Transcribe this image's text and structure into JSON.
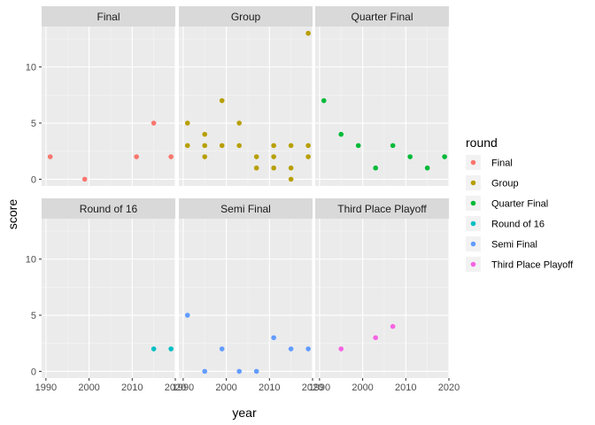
{
  "chart_data": {
    "type": "scatter",
    "facet_layout": "2x3 grid",
    "xlabel": "year",
    "ylabel": "score",
    "xlim": [
      1989,
      2020
    ],
    "ylim": [
      -0.6,
      13.6
    ],
    "x_ticks": [
      1990,
      2000,
      2010,
      2020
    ],
    "x_tick_labels": [
      "1990",
      "2000",
      "2010",
      "2020"
    ],
    "y_ticks": [
      0,
      5,
      10
    ],
    "y_tick_labels": [
      "0",
      "5",
      "10"
    ],
    "grid": true,
    "legend": {
      "title": "round",
      "placement": "right",
      "entries": [
        {
          "label": "Final",
          "color": "#F8766D"
        },
        {
          "label": "Group",
          "color": "#B79F00"
        },
        {
          "label": "Quarter Final",
          "color": "#00BA38"
        },
        {
          "label": "Round of 16",
          "color": "#00BFC4"
        },
        {
          "label": "Semi Final",
          "color": "#619CFF"
        },
        {
          "label": "Third Place Playoff",
          "color": "#F564E3"
        }
      ]
    },
    "panels": [
      {
        "name": "Final",
        "color": "#F8766D",
        "points": [
          [
            1991,
            2
          ],
          [
            1999,
            0
          ],
          [
            2011,
            2
          ],
          [
            2015,
            5
          ],
          [
            2019,
            2
          ]
        ]
      },
      {
        "name": "Group",
        "color": "#B79F00",
        "points": [
          [
            1991,
            5
          ],
          [
            1991,
            3
          ],
          [
            1995,
            4
          ],
          [
            1995,
            3
          ],
          [
            1995,
            2
          ],
          [
            1999,
            7
          ],
          [
            1999,
            3
          ],
          [
            2003,
            5
          ],
          [
            2003,
            3
          ],
          [
            2007,
            2
          ],
          [
            2007,
            1
          ],
          [
            2011,
            3
          ],
          [
            2011,
            2
          ],
          [
            2011,
            1
          ],
          [
            2015,
            3
          ],
          [
            2015,
            1
          ],
          [
            2015,
            0
          ],
          [
            2019,
            13
          ],
          [
            2019,
            3
          ],
          [
            2019,
            2
          ]
        ]
      },
      {
        "name": "Quarter Final",
        "color": "#00BA38",
        "points": [
          [
            1991,
            7
          ],
          [
            1995,
            4
          ],
          [
            1999,
            3
          ],
          [
            2003,
            1
          ],
          [
            2007,
            3
          ],
          [
            2011,
            2
          ],
          [
            2015,
            1
          ],
          [
            2019,
            2
          ]
        ]
      },
      {
        "name": "Round of 16",
        "color": "#00BFC4",
        "points": [
          [
            2015,
            2
          ],
          [
            2019,
            2
          ]
        ]
      },
      {
        "name": "Semi Final",
        "color": "#619CFF",
        "points": [
          [
            1991,
            5
          ],
          [
            1995,
            0
          ],
          [
            1999,
            2
          ],
          [
            2003,
            0
          ],
          [
            2007,
            0
          ],
          [
            2011,
            3
          ],
          [
            2015,
            2
          ],
          [
            2019,
            2
          ]
        ]
      },
      {
        "name": "Third Place Playoff",
        "color": "#F564E3",
        "points": [
          [
            1995,
            2
          ],
          [
            2003,
            3
          ],
          [
            2007,
            4
          ]
        ]
      }
    ]
  }
}
